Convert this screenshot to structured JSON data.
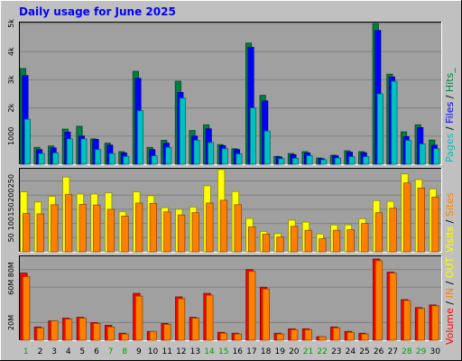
{
  "title": "Daily usage for June 2025",
  "colors": {
    "background": "#C0C0C0",
    "plot_bg": "#A0A0A0",
    "title": "#0000FF",
    "pages": "#00C0C0",
    "files": "#0000FF",
    "hits": "#008040",
    "visits": "#FFFF00",
    "sites": "#FF8000",
    "kbytes": "#FF0000",
    "kbin": "#FF8000",
    "kbout": "#FFFF00",
    "weekend_label": "#00A000",
    "weekday_label": "#000000"
  },
  "chart_data": [
    {
      "type": "bar",
      "panel": "hits-files-pages",
      "categories": [
        "1",
        "2",
        "3",
        "4",
        "5",
        "6",
        "7",
        "8",
        "9",
        "10",
        "11",
        "12",
        "13",
        "14",
        "15",
        "16",
        "17",
        "18",
        "19",
        "20",
        "21",
        "22",
        "23",
        "24",
        "25",
        "26",
        "27",
        "28",
        "29",
        "30"
      ],
      "weekend_days": [
        "1",
        "7",
        "8",
        "14",
        "15",
        "21",
        "22",
        "28",
        "29"
      ],
      "ylim": [
        0,
        5000
      ],
      "ytick_labels": [
        "5k",
        "4k",
        "3k",
        "2k",
        "1000"
      ],
      "ytick_values": [
        5000,
        4000,
        3000,
        2000,
        1000
      ],
      "series_label": "Pages / Files / Hits",
      "series": [
        {
          "name": "Hits",
          "values": [
            3400,
            600,
            650,
            1250,
            1350,
            900,
            750,
            450,
            3300,
            600,
            850,
            2950,
            1200,
            1400,
            700,
            550,
            4300,
            2450,
            280,
            380,
            450,
            220,
            320,
            480,
            450,
            5000,
            3200,
            1150,
            1400,
            860
          ]
        },
        {
          "name": "Files",
          "values": [
            3150,
            520,
            580,
            1140,
            1000,
            880,
            680,
            400,
            3050,
            520,
            750,
            2550,
            1000,
            1260,
            660,
            520,
            4150,
            2250,
            260,
            340,
            400,
            200,
            300,
            430,
            410,
            4750,
            3100,
            980,
            1300,
            680
          ]
        },
        {
          "name": "Pages",
          "values": [
            1600,
            380,
            400,
            900,
            900,
            520,
            380,
            280,
            1900,
            300,
            600,
            2350,
            850,
            770,
            550,
            370,
            2000,
            1180,
            200,
            210,
            300,
            160,
            220,
            270,
            270,
            2500,
            2950,
            850,
            720,
            550
          ]
        }
      ]
    },
    {
      "type": "bar",
      "panel": "visits-sites",
      "categories": [
        "1",
        "2",
        "3",
        "4",
        "5",
        "6",
        "7",
        "8",
        "9",
        "10",
        "11",
        "12",
        "13",
        "14",
        "15",
        "16",
        "17",
        "18",
        "19",
        "20",
        "21",
        "22",
        "23",
        "24",
        "25",
        "26",
        "27",
        "28",
        "29",
        "30"
      ],
      "ylim": [
        0,
        290
      ],
      "ytick_labels": [
        "250",
        "200",
        "150",
        "100",
        "50"
      ],
      "ytick_values": [
        250,
        200,
        150,
        100,
        50
      ],
      "series_label": "Visits / Sites",
      "series": [
        {
          "name": "Visits",
          "values": [
            212,
            176,
            196,
            264,
            204,
            204,
            208,
            142,
            212,
            198,
            156,
            150,
            158,
            233,
            290,
            213,
            118,
            72,
            64,
            112,
            105,
            63,
            95,
            95,
            117,
            181,
            178,
            275,
            255,
            222
          ]
        },
        {
          "name": "Sites",
          "values": [
            135,
            134,
            166,
            202,
            167,
            165,
            150,
            126,
            172,
            171,
            141,
            130,
            138,
            172,
            182,
            166,
            88,
            62,
            52,
            90,
            76,
            46,
            76,
            78,
            100,
            138,
            154,
            243,
            225,
            193
          ]
        }
      ]
    },
    {
      "type": "bar",
      "panel": "volume",
      "categories": [
        "1",
        "2",
        "3",
        "4",
        "5",
        "6",
        "7",
        "8",
        "9",
        "10",
        "11",
        "12",
        "13",
        "14",
        "15",
        "16",
        "17",
        "18",
        "19",
        "20",
        "21",
        "22",
        "23",
        "24",
        "25",
        "26",
        "27",
        "28",
        "29",
        "30"
      ],
      "ylim": [
        0,
        94
      ],
      "ytick_labels": [
        "80M",
        "60M",
        "20M"
      ],
      "ytick_values": [
        80,
        60,
        20
      ],
      "series_label": "Volume / IN / OUT",
      "series": [
        {
          "name": "Volume",
          "values": [
            76,
            15,
            22,
            25,
            26,
            20,
            17,
            8,
            53,
            10,
            19,
            49,
            26,
            53,
            9,
            8,
            80,
            60,
            8,
            13,
            13,
            4,
            15,
            10,
            8,
            92,
            77,
            46,
            37,
            40
          ]
        },
        {
          "name": "IN",
          "values": [
            72,
            14,
            22,
            24,
            25,
            19,
            15,
            7,
            50,
            10,
            18,
            47,
            25,
            51,
            8,
            7,
            78,
            58,
            7,
            12,
            12,
            4,
            14,
            9,
            7,
            90,
            76,
            45,
            36,
            39
          ]
        }
      ]
    }
  ]
}
